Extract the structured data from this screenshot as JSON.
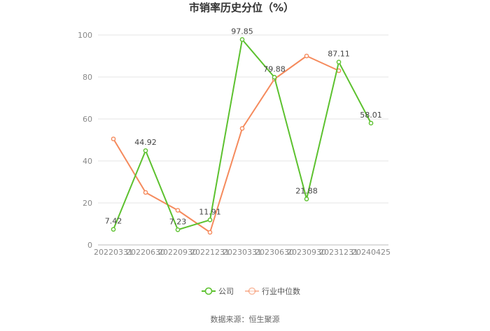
{
  "chart_data": {
    "type": "line",
    "title": "市销率历史分位（%）",
    "categories": [
      "20220331",
      "20220630",
      "20220930",
      "20221231",
      "20230331",
      "20230630",
      "20230930",
      "20231231",
      "20240425"
    ],
    "ylim": [
      0,
      100
    ],
    "yticks": [
      0,
      20,
      40,
      60,
      80,
      100
    ],
    "grid": true,
    "legend_position": "bottom",
    "series": [
      {
        "name": "公司",
        "color": "#5cc12e",
        "values": [
          7.42,
          44.92,
          7.23,
          11.91,
          97.85,
          79.88,
          21.88,
          87.11,
          58.01
        ],
        "labels": [
          "7.42",
          "44.92",
          "7.23",
          "11.91",
          "97.85",
          "79.88",
          "21.88",
          "87.11",
          "58.01"
        ]
      },
      {
        "name": "行业中位数",
        "color": "#f58a5c",
        "values": [
          50.5,
          25.0,
          16.5,
          6.0,
          55.5,
          79.0,
          90.0,
          83.0,
          null
        ]
      }
    ]
  },
  "source": "数据来源：恒生聚源"
}
